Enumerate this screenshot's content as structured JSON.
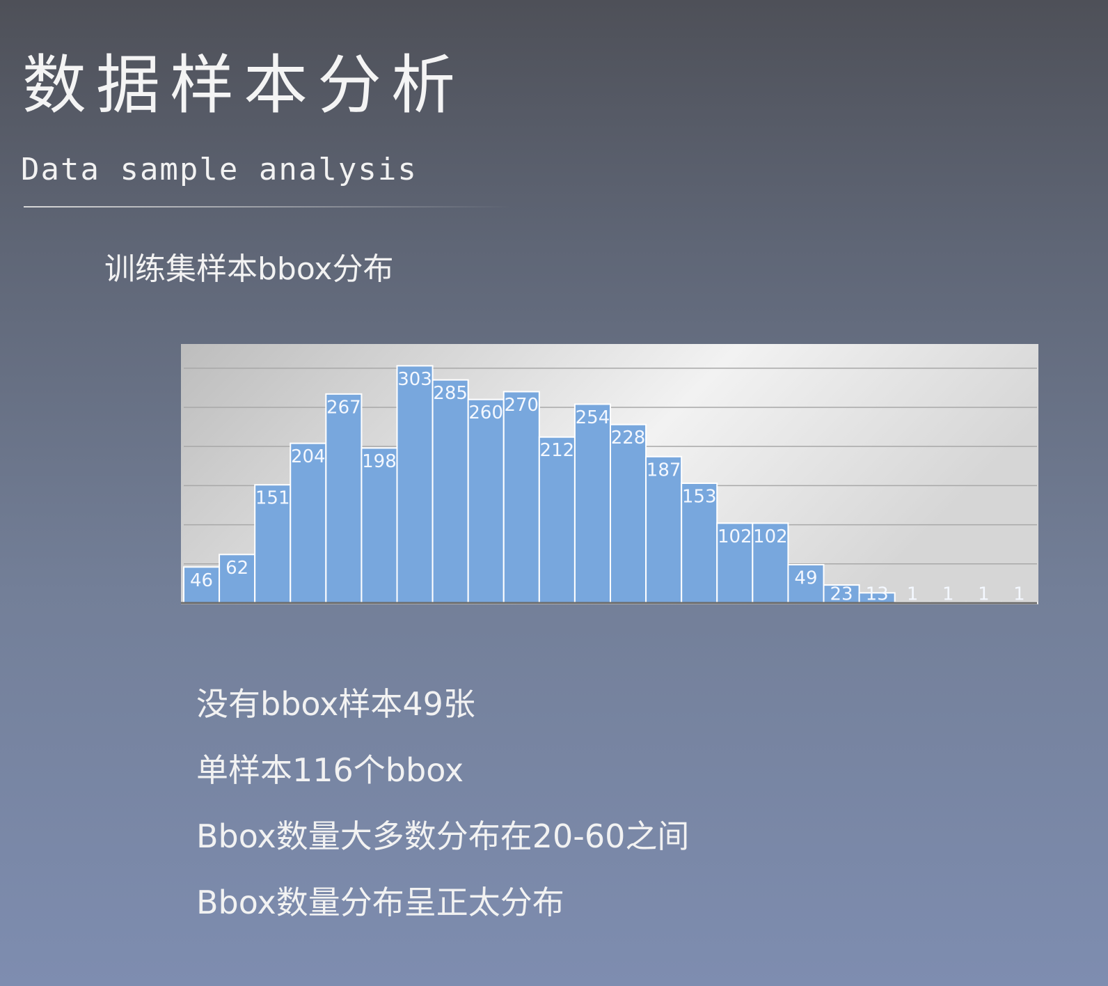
{
  "title": "数据样本分析",
  "subtitle": "Data sample analysis",
  "section": "训练集样本bbox分布",
  "notes": [
    "没有bbox样本49张",
    "单样本116个bbox",
    "Bbox数量大多数分布在20-60之间",
    "Bbox数量分布呈正太分布"
  ],
  "chart_data": {
    "type": "bar",
    "values": [
      46,
      62,
      151,
      204,
      267,
      198,
      303,
      285,
      260,
      270,
      212,
      254,
      228,
      187,
      153,
      102,
      102,
      49,
      23,
      13,
      1,
      1,
      1,
      1
    ],
    "color": "#78a7dd",
    "ylim": [
      0,
      330
    ],
    "yticks": [
      0,
      50,
      100,
      150,
      200,
      250,
      300
    ],
    "grid": true
  }
}
